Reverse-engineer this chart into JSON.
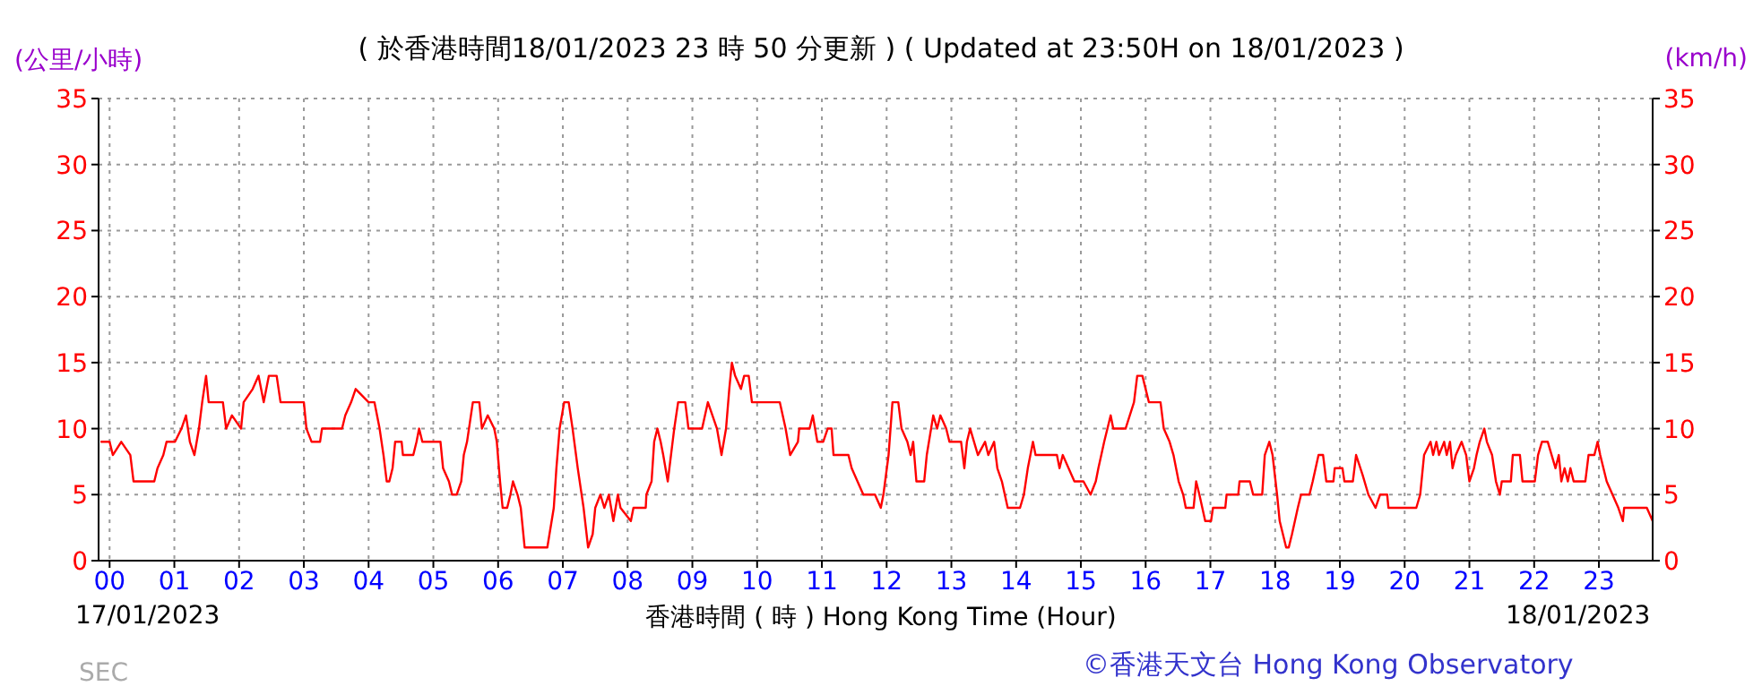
{
  "chart_data": {
    "type": "line",
    "title": "( 於香港時間18/01/2023 23 時 50 分更新 ) ( Updated at 23:50H on 18/01/2023 )",
    "xlabel": "香港時間 ( 時 ) Hong Kong Time (Hour)",
    "ylabel": "(公里/小時)",
    "y2label": "(km/h)",
    "annotations": [
      "17/01/2023",
      "18/01/2023",
      "©香港天文台 Hong Kong Observatory",
      "SEC"
    ],
    "xlim": [
      -0.17,
      23.83
    ],
    "xticks": [
      {
        "value": 0,
        "label": "00"
      },
      {
        "value": 1,
        "label": "01"
      },
      {
        "value": 2,
        "label": "02"
      },
      {
        "value": 3,
        "label": "03"
      },
      {
        "value": 4,
        "label": "04"
      },
      {
        "value": 5,
        "label": "05"
      },
      {
        "value": 6,
        "label": "06"
      },
      {
        "value": 7,
        "label": "07"
      },
      {
        "value": 8,
        "label": "08"
      },
      {
        "value": 9,
        "label": "09"
      },
      {
        "value": 10,
        "label": "10"
      },
      {
        "value": 11,
        "label": "11"
      },
      {
        "value": 12,
        "label": "12"
      },
      {
        "value": 13,
        "label": "13"
      },
      {
        "value": 14,
        "label": "14"
      },
      {
        "value": 15,
        "label": "15"
      },
      {
        "value": 16,
        "label": "16"
      },
      {
        "value": 17,
        "label": "17"
      },
      {
        "value": 18,
        "label": "18"
      },
      {
        "value": 19,
        "label": "19"
      },
      {
        "value": 20,
        "label": "20"
      },
      {
        "value": 21,
        "label": "21"
      },
      {
        "value": 22,
        "label": "22"
      },
      {
        "value": 23,
        "label": "23"
      }
    ],
    "ylim": [
      0,
      35
    ],
    "yticks": [
      0,
      5,
      10,
      15,
      20,
      25,
      30,
      35
    ],
    "y2lim": [
      0,
      35
    ],
    "y2ticks": [
      0,
      5,
      10,
      15,
      20,
      25,
      30,
      35
    ],
    "grid": true,
    "line_style": "solid",
    "marker": "none",
    "series": [
      {
        "color": "#ff0000",
        "x": [
          -0.14,
          0,
          0.05,
          0.18,
          0.32,
          0.37,
          0.69,
          0.74,
          0.83,
          0.88,
          1.01,
          1.11,
          1.18,
          1.24,
          1.31,
          1.38,
          1.43,
          1.49,
          1.53,
          1.75,
          1.8,
          1.89,
          2.03,
          2.07,
          2.21,
          2.3,
          2.38,
          2.46,
          2.58,
          2.64,
          3.0,
          3.04,
          3.12,
          3.25,
          3.28,
          3.59,
          3.64,
          3.73,
          3.8,
          4.0,
          4.09,
          4.17,
          4.23,
          4.28,
          4.32,
          4.37,
          4.41,
          4.51,
          4.53,
          4.69,
          4.74,
          4.78,
          4.83,
          5.11,
          5.15,
          5.24,
          5.29,
          5.36,
          5.43,
          5.47,
          5.52,
          5.61,
          5.71,
          5.75,
          5.84,
          5.94,
          5.98,
          6.03,
          6.07,
          6.14,
          6.19,
          6.23,
          6.3,
          6.35,
          6.41,
          6.76,
          6.86,
          6.9,
          6.95,
          7.02,
          7.09,
          7.15,
          7.23,
          7.32,
          7.39,
          7.46,
          7.5,
          7.58,
          7.64,
          7.71,
          7.78,
          7.85,
          7.89,
          8.05,
          8.09,
          8.28,
          8.29,
          8.37,
          8.41,
          8.46,
          8.51,
          8.55,
          8.62,
          8.67,
          8.72,
          8.78,
          8.89,
          8.94,
          9.15,
          9.24,
          9.31,
          9.38,
          9.45,
          9.52,
          9.57,
          9.61,
          9.66,
          9.75,
          9.8,
          9.87,
          9.92,
          10.35,
          10.44,
          10.51,
          10.63,
          10.65,
          10.81,
          10.86,
          10.93,
          11.02,
          11.09,
          11.15,
          11.18,
          11.41,
          11.46,
          11.55,
          11.64,
          11.82,
          11.91,
          11.95,
          12.03,
          12.09,
          12.18,
          12.23,
          12.32,
          12.37,
          12.41,
          12.46,
          12.58,
          12.62,
          12.72,
          12.78,
          12.83,
          12.92,
          12.97,
          13.15,
          13.2,
          13.24,
          13.29,
          13.35,
          13.41,
          13.52,
          13.57,
          13.66,
          13.71,
          13.78,
          13.87,
          14.06,
          14.12,
          14.18,
          14.26,
          14.3,
          14.63,
          14.67,
          14.72,
          14.9,
          15.04,
          15.15,
          15.23,
          15.27,
          15.36,
          15.46,
          15.5,
          15.69,
          15.82,
          15.87,
          15.95,
          16.0,
          16.05,
          16.23,
          16.28,
          16.37,
          16.43,
          16.51,
          16.58,
          16.62,
          16.74,
          16.78,
          16.83,
          16.92,
          17.01,
          17.04,
          17.23,
          17.25,
          17.43,
          17.45,
          17.61,
          17.66,
          17.8,
          17.84,
          17.91,
          17.96,
          18.03,
          18.07,
          18.17,
          18.21,
          18.26,
          18.35,
          18.4,
          18.53,
          18.58,
          18.67,
          18.74,
          18.79,
          18.9,
          18.92,
          19.04,
          19.07,
          19.2,
          19.25,
          19.35,
          19.44,
          19.55,
          19.62,
          19.73,
          19.75,
          20.18,
          20.24,
          20.3,
          20.4,
          20.44,
          20.49,
          20.53,
          20.61,
          20.65,
          20.7,
          20.74,
          20.79,
          20.88,
          20.95,
          21.0,
          21.07,
          21.11,
          21.16,
          21.23,
          21.27,
          21.35,
          21.41,
          21.47,
          21.5,
          21.64,
          21.67,
          21.78,
          21.82,
          22.01,
          22.06,
          22.12,
          22.21,
          22.27,
          22.33,
          22.38,
          22.42,
          22.47,
          22.52,
          22.56,
          22.61,
          22.79,
          22.84,
          22.93,
          22.98,
          23.02,
          23.07,
          23.12,
          23.21,
          23.3,
          23.37,
          23.39,
          23.74,
          23.83
        ],
        "values": [
          9,
          9,
          8,
          9,
          8,
          6,
          6,
          7,
          8,
          9,
          9,
          10,
          11,
          9,
          8,
          10,
          12,
          14,
          12,
          12,
          10,
          11,
          10,
          12,
          13,
          14,
          12,
          14,
          14,
          12,
          12,
          10,
          9,
          9,
          10,
          10,
          11,
          12,
          13,
          12,
          12,
          10,
          8,
          6,
          6,
          7,
          9,
          9,
          8,
          8,
          9,
          10,
          9,
          9,
          7,
          6,
          5,
          5,
          6,
          8,
          9,
          12,
          12,
          10,
          11,
          10,
          9,
          6,
          4,
          4,
          5,
          6,
          5,
          4,
          1,
          1,
          4,
          7,
          10,
          12,
          12,
          10,
          7,
          4,
          1,
          2,
          4,
          5,
          4,
          5,
          3,
          5,
          4,
          3,
          4,
          4,
          5,
          6,
          9,
          10,
          9,
          8,
          6,
          8,
          10,
          12,
          12,
          10,
          10,
          12,
          11,
          10,
          8,
          10,
          13,
          15,
          14,
          13,
          14,
          14,
          12,
          12,
          10,
          8,
          9,
          10,
          10,
          11,
          9,
          9,
          10,
          10,
          8,
          8,
          7,
          6,
          5,
          5,
          4,
          5,
          8,
          12,
          12,
          10,
          9,
          8,
          9,
          6,
          6,
          8,
          11,
          10,
          11,
          10,
          9,
          9,
          7,
          9,
          10,
          9,
          8,
          9,
          8,
          9,
          7,
          6,
          4,
          4,
          5,
          7,
          9,
          8,
          8,
          7,
          8,
          6,
          6,
          5,
          6,
          7,
          9,
          11,
          10,
          10,
          12,
          14,
          14,
          13,
          12,
          12,
          10,
          9,
          8,
          6,
          5,
          4,
          4,
          6,
          5,
          3,
          3,
          4,
          4,
          5,
          5,
          6,
          6,
          5,
          5,
          8,
          9,
          8,
          5,
          3,
          1,
          1,
          2,
          4,
          5,
          5,
          6,
          8,
          8,
          6,
          6,
          7,
          7,
          6,
          6,
          8,
          6.5,
          5,
          4,
          5,
          5,
          4,
          4,
          5,
          8,
          9,
          8,
          9,
          8,
          9,
          8,
          9,
          7,
          8,
          9,
          8,
          6,
          7,
          8,
          9,
          10,
          9,
          8,
          6,
          5,
          6,
          6,
          8,
          8,
          6,
          6,
          8,
          9,
          9,
          8,
          7,
          8,
          6,
          7,
          6,
          7,
          6,
          6,
          8,
          8,
          9,
          8,
          7,
          6,
          5,
          4,
          3,
          4,
          4,
          3
        ]
      }
    ]
  }
}
